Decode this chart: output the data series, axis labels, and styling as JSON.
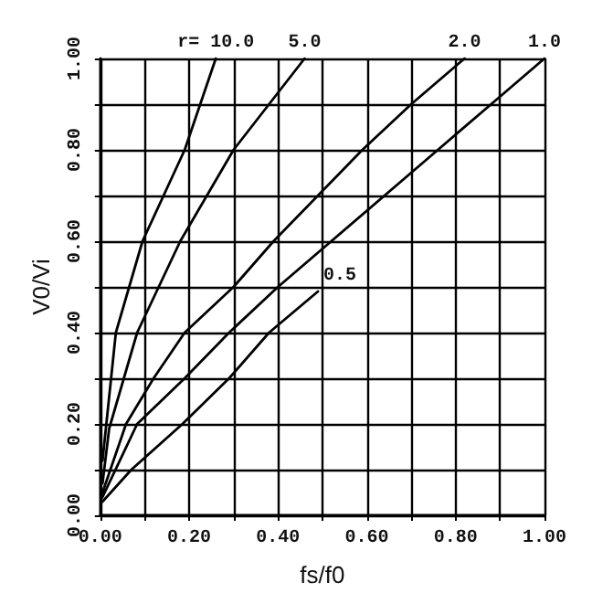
{
  "chart_data": {
    "type": "line",
    "xlabel": "fs/f0",
    "ylabel": "V0/Vi",
    "xlim": [
      0,
      1
    ],
    "ylim": [
      0,
      1
    ],
    "xticks": [
      {
        "value": 0,
        "label": "0.00"
      },
      {
        "value": 0.1,
        "label": null
      },
      {
        "value": 0.2,
        "label": "0.20"
      },
      {
        "value": 0.3,
        "label": null
      },
      {
        "value": 0.4,
        "label": "0.40"
      },
      {
        "value": 0.5,
        "label": null
      },
      {
        "value": 0.6,
        "label": "0.60"
      },
      {
        "value": 0.7,
        "label": null
      },
      {
        "value": 0.8,
        "label": "0.80"
      },
      {
        "value": 0.9,
        "label": null
      },
      {
        "value": 1,
        "label": "1.00"
      }
    ],
    "yticks": [
      {
        "value": 0,
        "label": "0.00"
      },
      {
        "value": 0.1,
        "label": null
      },
      {
        "value": 0.2,
        "label": "0.20"
      },
      {
        "value": 0.3,
        "label": null
      },
      {
        "value": 0.4,
        "label": "0.40"
      },
      {
        "value": 0.5,
        "label": null
      },
      {
        "value": 0.6,
        "label": "0.60"
      },
      {
        "value": 0.7,
        "label": null
      },
      {
        "value": 0.8,
        "label": "0.80"
      },
      {
        "value": 0.9,
        "label": null
      },
      {
        "value": 1,
        "label": "1.00"
      }
    ],
    "grid": true,
    "legend": false,
    "marker": "none",
    "line_style": "solid",
    "series": [
      {
        "name": "r= 10.0",
        "color": "#000000",
        "x": [
          0.005,
          0.035,
          0.095,
          0.19,
          0.26
        ],
        "values": [
          0.12,
          0.4,
          0.6,
          0.8,
          1.0
        ]
      },
      {
        "name": "5.0",
        "color": "#000000",
        "x": [
          0.005,
          0.02,
          0.083,
          0.18,
          0.3,
          0.38,
          0.46
        ],
        "values": [
          0.07,
          0.19,
          0.4,
          0.6,
          0.8,
          0.9,
          1.0
        ]
      },
      {
        "name": "2.0",
        "color": "#000000",
        "x": [
          0.005,
          0.058,
          0.12,
          0.19,
          0.3,
          0.39,
          0.59,
          0.7,
          0.82
        ],
        "values": [
          0.05,
          0.2,
          0.3,
          0.4,
          0.5,
          0.6,
          0.8,
          0.9,
          1.0
        ]
      },
      {
        "name": "1.0",
        "color": "#000000",
        "x": [
          0.005,
          0.083,
          0.19,
          0.29,
          0.4,
          0.52,
          0.76,
          0.88,
          1.0
        ],
        "values": [
          0.04,
          0.2,
          0.3,
          0.4,
          0.5,
          0.6,
          0.8,
          0.9,
          1.0
        ]
      },
      {
        "name": "0.5",
        "color": "#000000",
        "x": [
          0.005,
          0.07,
          0.185,
          0.29,
          0.38,
          0.49
        ],
        "values": [
          0.03,
          0.1,
          0.2,
          0.3,
          0.4,
          0.49
        ]
      }
    ]
  }
}
